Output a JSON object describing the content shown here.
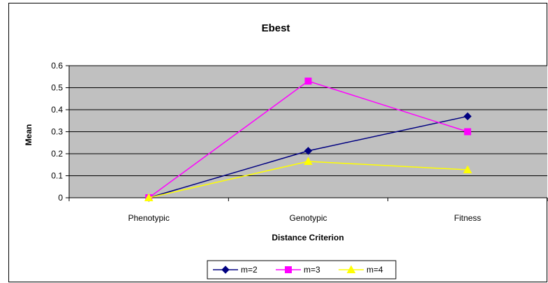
{
  "chart_data": {
    "type": "line",
    "title": "Ebest",
    "xlabel": "Distance Criterion",
    "ylabel": "Mean",
    "categories": [
      "Phenotypic",
      "Genotypic",
      "Fitness"
    ],
    "ylim": [
      0,
      0.6
    ],
    "yticks": [
      0,
      0.1,
      0.2,
      0.3,
      0.4,
      0.5,
      0.6
    ],
    "ytick_labels": [
      "0",
      "0.1",
      "0.2",
      "0.3",
      "0.4",
      "0.5",
      "0.6"
    ],
    "grid": true,
    "plot_background": "#c0c0c0",
    "legend_position": "bottom",
    "series": [
      {
        "name": "m=2",
        "values": [
          0,
          0.213,
          0.37
        ],
        "color": "#000080",
        "marker": "diamond"
      },
      {
        "name": "m=3",
        "values": [
          0,
          0.53,
          0.3
        ],
        "color": "#ff00ff",
        "marker": "square"
      },
      {
        "name": "m=4",
        "values": [
          0,
          0.165,
          0.127
        ],
        "color": "#ffff00",
        "marker": "triangle"
      }
    ]
  }
}
